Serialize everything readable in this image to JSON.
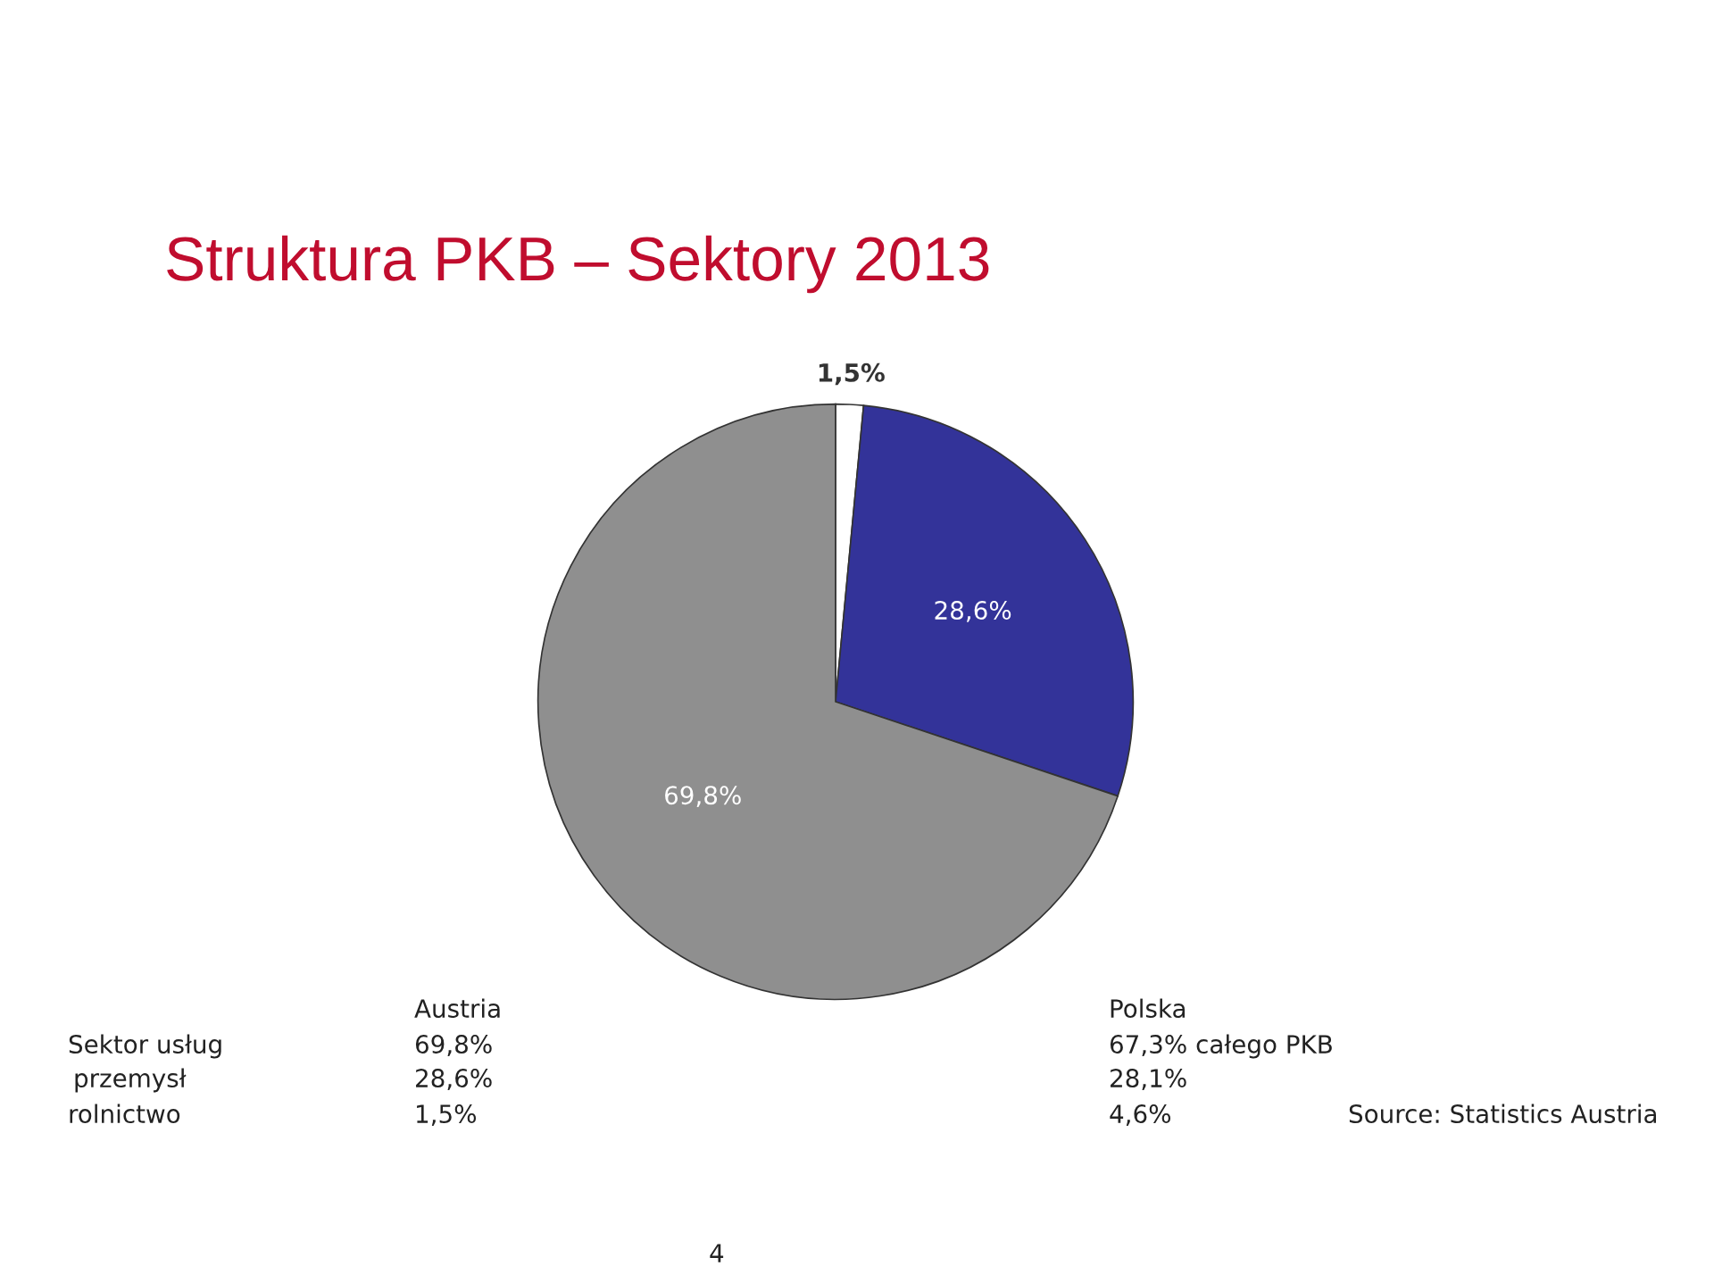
{
  "chart_data": {
    "type": "pie",
    "title": "Struktura PKB – Sektory 2013",
    "categories": [
      null,
      null,
      null
    ],
    "values": [
      1.5,
      28.6,
      69.8
    ],
    "colors": [
      "#ffffff",
      "#333399",
      "#8f8f8f"
    ],
    "value_labels": [
      "1,5%",
      "28,6%",
      "69,8%"
    ],
    "annotations": [
      "Austria",
      "Polska",
      "Sektor usług",
      "69,8%",
      "67,3% całego PKB",
      "przemysł",
      "28,6%",
      "28,1%",
      "rolnictwo",
      "1,5%",
      "4,6%",
      "Source: Statistics Austria",
      "4"
    ]
  }
}
